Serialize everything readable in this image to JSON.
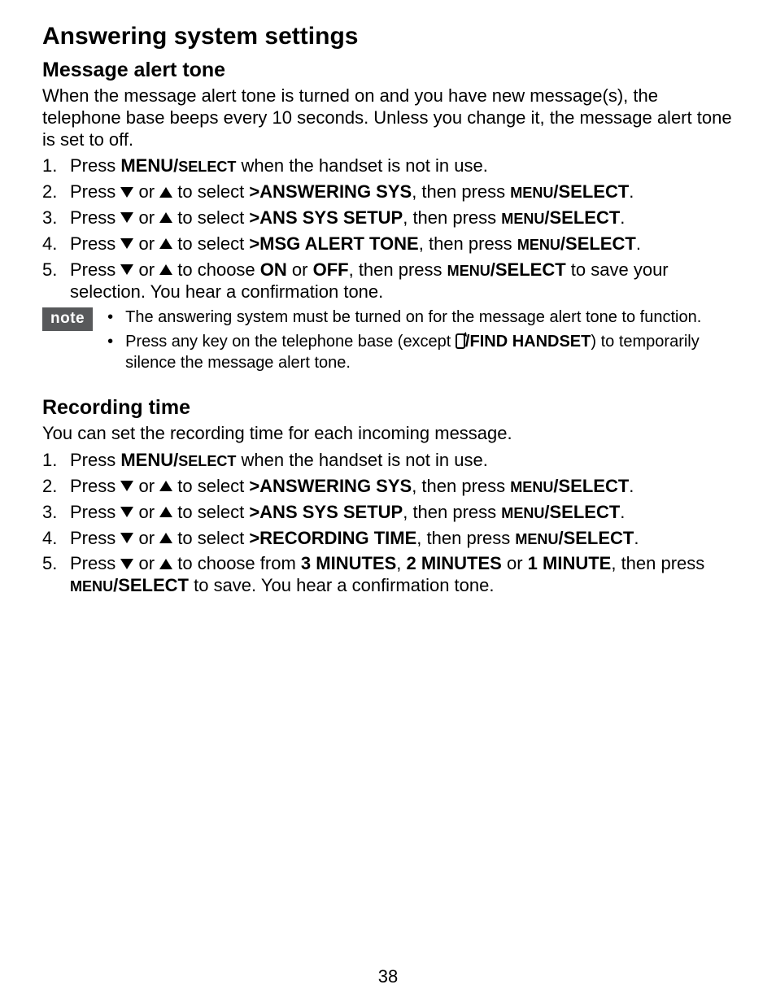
{
  "heading": "Answering system settings",
  "section1": {
    "title": "Message alert tone",
    "intro": "When the message alert tone is turned on and you have new message(s), the telephone base beeps every 10 seconds. Unless you change it, the message alert tone is set to off.",
    "steps": {
      "s1_pre": "Press ",
      "s1_bold": "MENU/",
      "s1_sc": "SELECT",
      "s1_post": " when the handset is not in use.",
      "s2_pre": "Press ",
      "s2_or": " or ",
      "s2_sel": " to select ",
      "s2_gt": ">",
      "s2_opt": "ANSWERING SYS",
      "s2_then": ", then press ",
      "s2_menu": "MENU",
      "s2_slashsel": "/SELECT",
      "s2_end": ".",
      "s3_opt": "ANS SYS SETUP",
      "s4_opt": "MSG ALERT TONE",
      "s5_pre": "Press ",
      "s5_choose": " to choose ",
      "s5_on": "ON",
      "s5_or2": " or ",
      "s5_off": "OFF",
      "s5_then": ", then press ",
      "s5_save": " to save your selection. You hear a confirmation tone."
    }
  },
  "note": {
    "label": "note",
    "n1": "The answering system must be turned on for the message alert tone to function.",
    "n2_pre": "Press any key on the telephone base (except ",
    "n2_bold": "/FIND HANDSET",
    "n2_post": ") to temporarily silence the message alert tone."
  },
  "section2": {
    "title": "Recording time",
    "intro": "You can set the recording time for each incoming message.",
    "steps": {
      "s4_opt": "RECORDING TIME",
      "s5_pre": "Press ",
      "s5_choose": " to choose from ",
      "s5_a": "3 MINUTES",
      "s5_c1": ", ",
      "s5_b": "2 MINUTES",
      "s5_or": " or ",
      "s5_c": "1 MINUTE",
      "s5_then": ", then press ",
      "s5_save": " to save. You hear a confirmation tone."
    }
  },
  "page": "38"
}
